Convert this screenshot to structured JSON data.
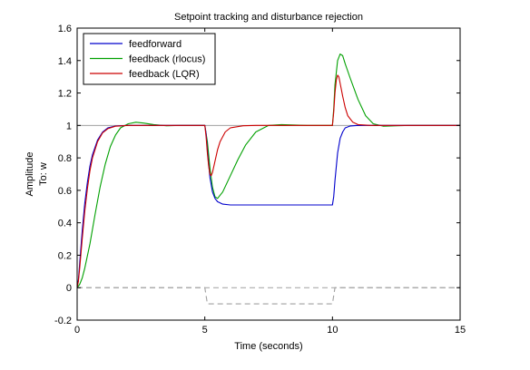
{
  "chart_data": {
    "type": "line",
    "title": "Setpoint tracking and disturbance rejection",
    "xlabel": "Time (seconds)",
    "ylabel": "Amplitude",
    "ylabel_secondary": "To: w",
    "xlim": [
      0,
      15
    ],
    "ylim": [
      -0.2,
      1.6
    ],
    "x_ticks": [
      0,
      5,
      10,
      15
    ],
    "y_ticks": [
      -0.2,
      0,
      0.2,
      0.4,
      0.6,
      0.8,
      1,
      1.2,
      1.4,
      1.6
    ],
    "x_tick_labels": [
      "0",
      "5",
      "10",
      "15"
    ],
    "y_tick_labels": [
      "-0.2",
      "0",
      "0.2",
      "0.4",
      "0.6",
      "0.8",
      "1",
      "1.2",
      "1.4",
      "1.6"
    ],
    "grid": false,
    "legend_position": "top-left",
    "reference_lines": [
      {
        "y": 1,
        "style": "solid",
        "color": "#a0a0a0"
      },
      {
        "y": 0,
        "style": "dashed",
        "color": "#a0a0a0"
      }
    ],
    "series": [
      {
        "name": "feedforward",
        "color": "#0000cc",
        "x": [
          0,
          0.05,
          0.1,
          0.2,
          0.3,
          0.4,
          0.5,
          0.6,
          0.8,
          1.0,
          1.2,
          1.5,
          2.0,
          3.0,
          5.0,
          5.05,
          5.1,
          5.2,
          5.3,
          5.4,
          5.5,
          5.7,
          6.0,
          7.0,
          9.0,
          10.0,
          10.05,
          10.1,
          10.2,
          10.3,
          10.4,
          10.5,
          10.7,
          11.0,
          12.0,
          15.0
        ],
        "y": [
          0,
          0.05,
          0.15,
          0.35,
          0.52,
          0.65,
          0.75,
          0.82,
          0.91,
          0.96,
          0.985,
          0.997,
          1.0,
          1.0,
          1.0,
          0.95,
          0.85,
          0.68,
          0.59,
          0.55,
          0.53,
          0.515,
          0.51,
          0.51,
          0.51,
          0.51,
          0.56,
          0.66,
          0.83,
          0.92,
          0.96,
          0.985,
          0.997,
          1.0,
          1.0,
          1.0
        ]
      },
      {
        "name": "feedback (rlocus)",
        "color": "#00a000",
        "x": [
          0,
          0.1,
          0.2,
          0.3,
          0.5,
          0.7,
          0.9,
          1.1,
          1.3,
          1.5,
          1.7,
          2.0,
          2.3,
          2.6,
          3.0,
          3.5,
          4.0,
          5.0,
          5.1,
          5.2,
          5.3,
          5.4,
          5.5,
          5.7,
          6.0,
          6.3,
          6.6,
          7.0,
          7.5,
          8.0,
          9.0,
          10.0,
          10.05,
          10.1,
          10.2,
          10.3,
          10.4,
          10.5,
          10.7,
          11.0,
          11.3,
          11.6,
          12.0,
          12.5,
          13.0,
          15.0
        ],
        "y": [
          0,
          0.02,
          0.06,
          0.12,
          0.27,
          0.45,
          0.62,
          0.76,
          0.87,
          0.94,
          0.985,
          1.01,
          1.02,
          1.015,
          1.005,
          0.998,
          1.0,
          1.0,
          0.9,
          0.74,
          0.62,
          0.56,
          0.55,
          0.59,
          0.69,
          0.79,
          0.88,
          0.96,
          1.0,
          1.005,
          1.0,
          1.0,
          1.1,
          1.25,
          1.4,
          1.44,
          1.43,
          1.38,
          1.29,
          1.16,
          1.06,
          1.01,
          0.995,
          0.998,
          1.0,
          1.0
        ]
      },
      {
        "name": "feedback (LQR)",
        "color": "#cc0000",
        "x": [
          0,
          0.05,
          0.1,
          0.2,
          0.3,
          0.4,
          0.5,
          0.6,
          0.8,
          1.0,
          1.2,
          1.5,
          2.0,
          3.0,
          5.0,
          5.05,
          5.1,
          5.15,
          5.2,
          5.25,
          5.3,
          5.4,
          5.5,
          5.6,
          5.8,
          6.0,
          6.5,
          7.0,
          10.0,
          10.05,
          10.1,
          10.15,
          10.2,
          10.25,
          10.3,
          10.4,
          10.5,
          10.6,
          10.8,
          11.0,
          11.5,
          12.0,
          15.0
        ],
        "y": [
          0,
          0.04,
          0.12,
          0.3,
          0.47,
          0.61,
          0.72,
          0.8,
          0.9,
          0.955,
          0.98,
          0.995,
          1.0,
          1.0,
          1.0,
          0.93,
          0.83,
          0.75,
          0.7,
          0.69,
          0.71,
          0.78,
          0.85,
          0.9,
          0.96,
          0.985,
          0.998,
          1.0,
          1.0,
          1.08,
          1.2,
          1.28,
          1.31,
          1.3,
          1.26,
          1.18,
          1.11,
          1.06,
          1.02,
          1.005,
          1.0,
          1.0,
          1.0
        ]
      },
      {
        "name": "",
        "color": "#a0a0a0",
        "dashed": true,
        "x": [
          0,
          5.0,
          5.1,
          10.0,
          10.1,
          15.0
        ],
        "y": [
          0,
          0,
          -0.1,
          -0.1,
          0,
          0
        ]
      }
    ]
  }
}
